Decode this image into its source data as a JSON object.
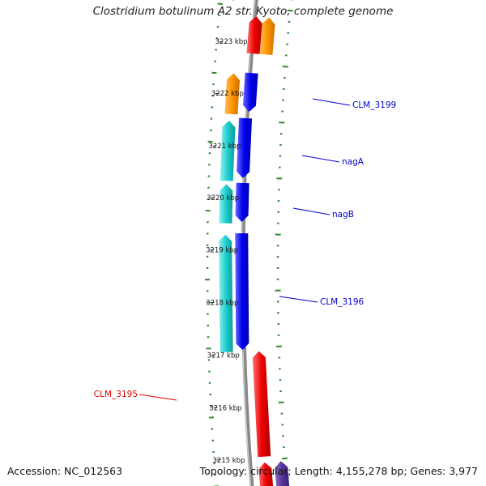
{
  "title": "Clostridium botulinum A2 str. Kyoto, complete genome",
  "footer": {
    "accession": "Accession: NC_012563",
    "summary": "Topology: circular; Length: 4,155,278 bp; Genes: 3,977"
  },
  "ticks": [
    "3223 kbp",
    "3222 kbp",
    "3221 kbp",
    "3220 kbp",
    "3219 kbp",
    "3218 kbp",
    "3217 kbp",
    "3216 kbp",
    "3215 kbp"
  ],
  "gene_labels": [
    {
      "text": "CLM_3199",
      "color": "#0000cc"
    },
    {
      "text": "nagA",
      "color": "#0000cc"
    },
    {
      "text": "nagB",
      "color": "#0000cc"
    },
    {
      "text": "CLM_3196",
      "color": "#0000cc"
    },
    {
      "text": "CLM_3195",
      "color": "#dd0000"
    }
  ],
  "colors": {
    "cds_blue": "#0000ee",
    "cds_cyan": "#1ecfcf",
    "cds_red": "#ee0000",
    "cds_orange": "#ff9500",
    "cds_purple": "#553399",
    "backbone": "#888888",
    "gc_skew": "#2e8b2e"
  }
}
